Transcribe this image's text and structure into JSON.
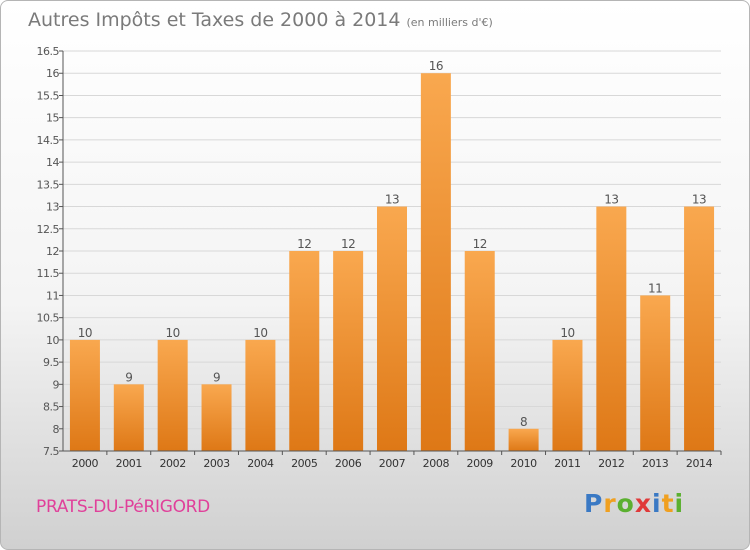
{
  "title": "Autres Impôts et Taxes de 2000 à 2014",
  "unit": "(en milliers d'€)",
  "region": "PRATS-DU-PéRIGORD",
  "logo": {
    "text": "Proxiti",
    "letters": [
      {
        "ch": "P",
        "color": "#3a79c4"
      },
      {
        "ch": "r",
        "color": "#f0a020"
      },
      {
        "ch": "o",
        "color": "#5bb030"
      },
      {
        "ch": "x",
        "color": "#e03a3a"
      },
      {
        "ch": "i",
        "color": "#3a79c4"
      },
      {
        "ch": "t",
        "color": "#f0a020"
      },
      {
        "ch": "i",
        "color": "#5bb030"
      }
    ]
  },
  "colors": {
    "bar_top": "#f9a84f",
    "bar_bottom": "#de7816",
    "grid": "#d8d8d8",
    "axis": "#555555",
    "text": "#555555",
    "accent": "#e0409a"
  },
  "chart_data": {
    "type": "bar",
    "title": "Autres Impôts et Taxes de 2000 à 2014",
    "subtitle": "(en milliers d'€)",
    "categories": [
      "2000",
      "2001",
      "2002",
      "2003",
      "2004",
      "2005",
      "2006",
      "2007",
      "2008",
      "2009",
      "2010",
      "2011",
      "2012",
      "2013",
      "2014"
    ],
    "values": [
      10,
      9,
      10,
      9,
      10,
      12,
      12,
      13,
      16,
      12,
      8,
      10,
      13,
      11,
      13
    ],
    "value_labels": [
      "10",
      "9",
      "10",
      "9",
      "10",
      "12",
      "12",
      "13",
      "16",
      "12",
      "8",
      "10",
      "13",
      "11",
      "13"
    ],
    "ylim": [
      7.5,
      16.5
    ],
    "yticks": [
      7.5,
      8,
      8.5,
      9,
      9.5,
      10,
      10.5,
      11,
      11.5,
      12,
      12.5,
      13,
      13.5,
      14,
      14.5,
      15,
      15.5,
      16,
      16.5
    ],
    "ytick_labels": [
      "7.5",
      "8",
      "8.5",
      "9",
      "9.5",
      "10",
      "10.5",
      "11",
      "11.5",
      "12",
      "12.5",
      "13",
      "13.5",
      "14",
      "14.5",
      "15",
      "15.5",
      "16",
      "16.5"
    ],
    "grid": true,
    "legend": "none"
  }
}
